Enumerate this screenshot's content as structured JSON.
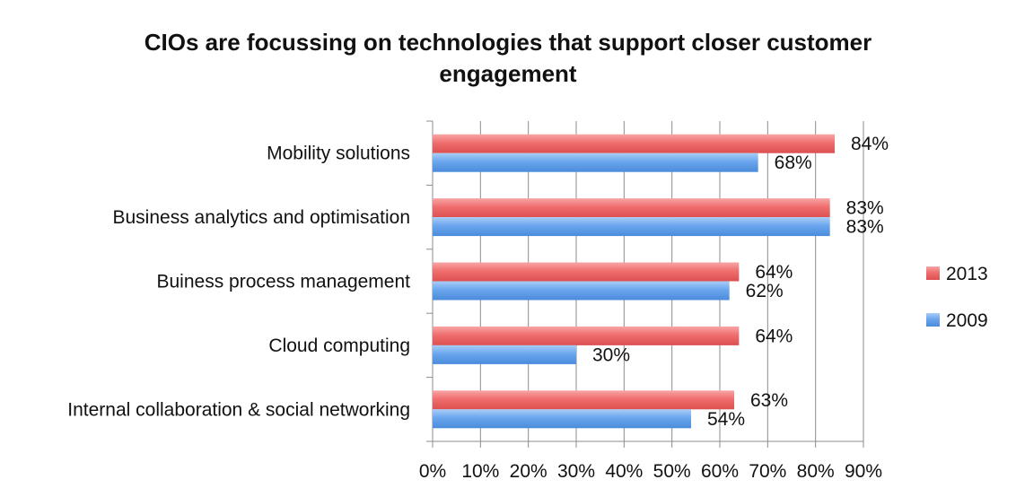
{
  "chart_data": {
    "type": "bar",
    "orientation": "horizontal",
    "title_lines": [
      "CIOs are focussing on technologies that support closer customer",
      "engagement"
    ],
    "title": "CIOs are focussing on technologies that support closer customer engagement",
    "xlabel": "",
    "ylabel": "",
    "xlim": [
      0,
      90
    ],
    "tick_values": [
      0,
      10,
      20,
      30,
      40,
      50,
      60,
      70,
      80,
      90
    ],
    "tick_labels": [
      "0%",
      "10%",
      "20%",
      "30%",
      "40%",
      "50%",
      "60%",
      "70%",
      "80%",
      "90%"
    ],
    "categories": [
      "Mobility solutions",
      "Business analytics and optimisation",
      "Buiness process management",
      "Cloud computing",
      "Internal collaboration & social networking"
    ],
    "series": [
      {
        "name": "2013",
        "color": "#f06e6e",
        "values": [
          84,
          83,
          64,
          64,
          63
        ],
        "labels": [
          "84%",
          "83%",
          "64%",
          "64%",
          "63%"
        ]
      },
      {
        "name": "2009",
        "color": "#6aa6ee",
        "values": [
          68,
          83,
          62,
          30,
          54
        ],
        "labels": [
          "68%",
          "83%",
          "62%",
          "30%",
          "54%"
        ]
      }
    ],
    "grid": "vertical",
    "legend_position": "right"
  }
}
